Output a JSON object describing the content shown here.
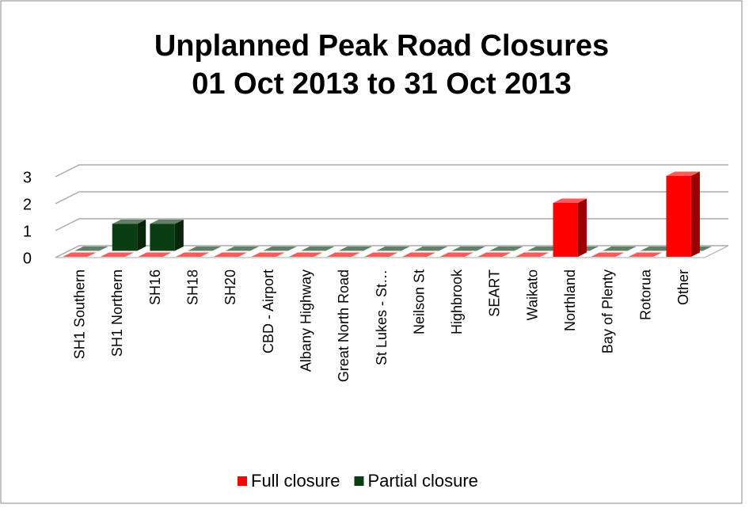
{
  "chart_data": {
    "type": "bar3d",
    "title": [
      "Unplanned Peak Road Closures",
      "01 Oct 2013 to 31 Oct 2013"
    ],
    "categories": [
      "SH1 Southern",
      "SH1 Northern",
      "SH16",
      "SH18",
      "SH20",
      "CBD - Airport",
      "Albany Highway",
      "Great North Road",
      "St Lukes - St…",
      "Neilson St",
      "Highbrook",
      "SEART",
      "Waikato",
      "Northland",
      "Bay of Plenty",
      "Rotorua",
      "Other"
    ],
    "series": [
      {
        "name": "Full closure",
        "color": "#ff0000",
        "values": [
          0,
          0,
          0,
          0,
          0,
          0,
          0,
          0,
          0,
          0,
          0,
          0,
          0,
          2,
          0,
          0,
          3
        ]
      },
      {
        "name": "Partial closure",
        "color": "#0b3d12",
        "values": [
          0,
          1,
          1,
          0,
          0,
          0,
          0,
          0,
          0,
          0,
          0,
          0,
          0,
          0,
          0,
          0,
          0
        ]
      }
    ],
    "ylim": [
      0,
      3
    ],
    "yticks": [
      0,
      1,
      2,
      3
    ],
    "grid": true,
    "legend": "bottom"
  }
}
